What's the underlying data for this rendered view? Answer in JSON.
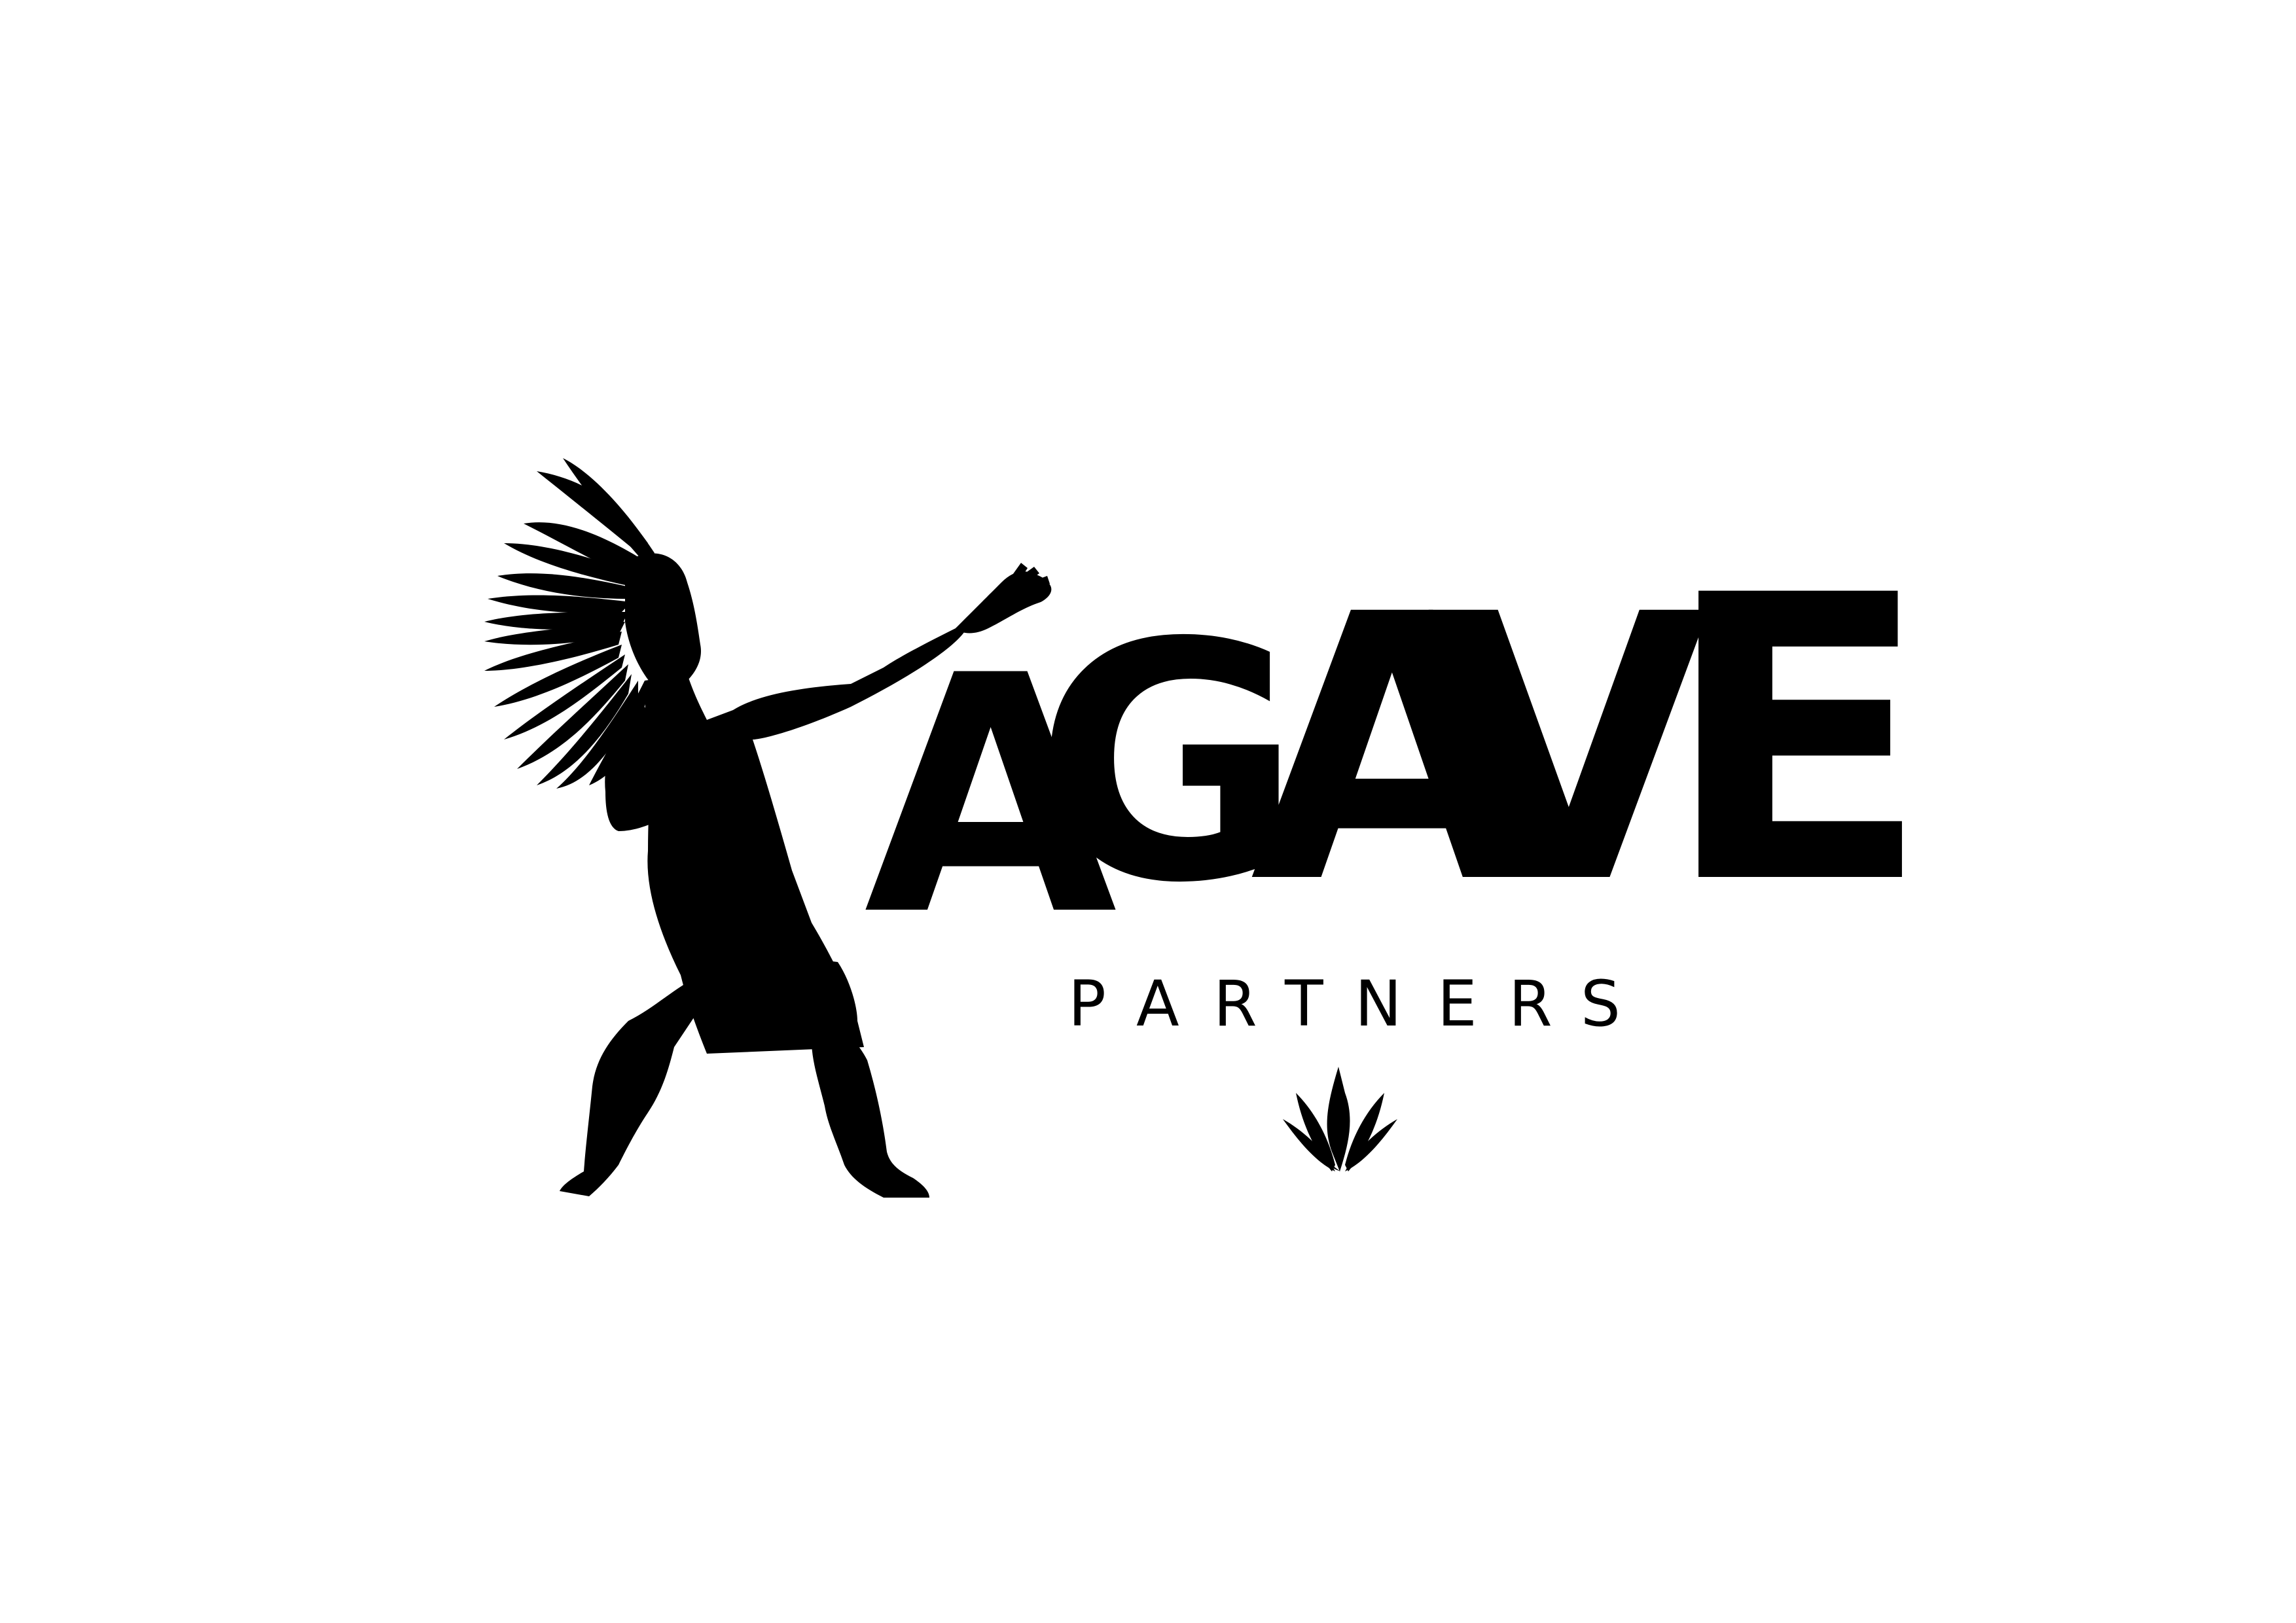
{
  "logo": {
    "wordmark_letters": [
      "A",
      "G",
      "A",
      "V",
      "E"
    ],
    "tagline_letters": [
      "P",
      "A",
      "R",
      "T",
      "N",
      "E",
      "R",
      "S"
    ],
    "figure_icon": "dancing-figure-silhouette-icon",
    "emblem_icon": "agave-plant-icon",
    "ink_color": "#000000",
    "background_color": "#ffffff"
  }
}
